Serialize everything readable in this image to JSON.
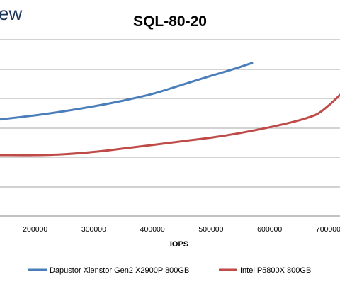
{
  "brand_text": "ew",
  "chart_data": {
    "type": "line",
    "title": "SQL-80-20",
    "xlabel": "IOPS",
    "ylabel": "",
    "xlim": [
      140000,
      720000
    ],
    "x_ticks": [
      200000,
      300000,
      400000,
      500000,
      600000,
      700000
    ],
    "grid": true,
    "legend_position": "bottom",
    "series": [
      {
        "name": "Dapustor Xlenstor Gen2 X2900P 800GB",
        "color": "#4a7ebb",
        "points": [
          [
            140000,
            0.36
          ],
          [
            200000,
            0.401
          ],
          [
            250000,
            0.443
          ],
          [
            300000,
            0.492
          ],
          [
            350000,
            0.549
          ],
          [
            400000,
            0.617
          ],
          [
            450000,
            0.708
          ],
          [
            500000,
            0.799
          ],
          [
            540000,
            0.87
          ],
          [
            570000,
            0.929
          ]
        ]
      },
      {
        "name": "Intel P5800X 800GB",
        "color": "#be4b48",
        "points": [
          [
            140000,
            0.0
          ],
          [
            200000,
            0.0
          ],
          [
            250000,
            0.009
          ],
          [
            300000,
            0.032
          ],
          [
            350000,
            0.066
          ],
          [
            400000,
            0.102
          ],
          [
            450000,
            0.139
          ],
          [
            500000,
            0.176
          ],
          [
            550000,
            0.223
          ],
          [
            600000,
            0.281
          ],
          [
            650000,
            0.351
          ],
          [
            680000,
            0.411
          ],
          [
            700000,
            0.497
          ],
          [
            720000,
            0.607
          ]
        ]
      }
    ]
  }
}
